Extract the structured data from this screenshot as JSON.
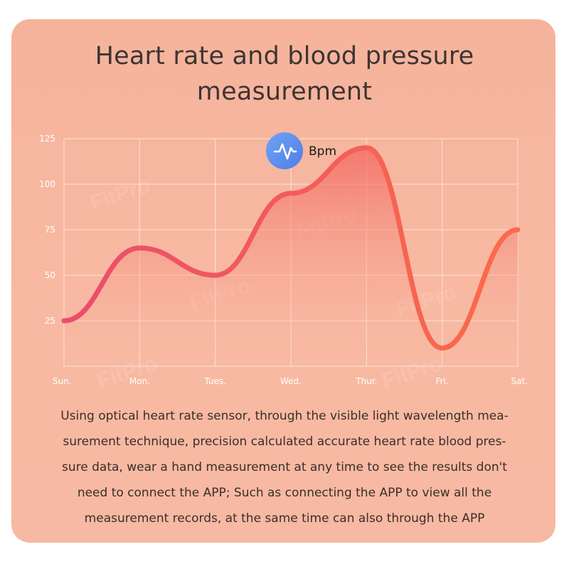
{
  "title_lines": [
    "Heart rate and blood pressure",
    "measurement"
  ],
  "legend": {
    "label": "Bpm",
    "icon": "heartbeat-pulse-icon",
    "badge_color": "#4f7de8"
  },
  "watermark": "FitPro",
  "colors": {
    "line_start": "#ea4d6c",
    "line_end": "#fb6b4a",
    "background": "#f7b6a0"
  },
  "chart_data": {
    "type": "area",
    "categories": [
      "Sun.",
      "Mon.",
      "Tues.",
      "Wed.",
      "Thur.",
      "Fri.",
      "Sat."
    ],
    "values": [
      25,
      65,
      50,
      95,
      120,
      10,
      75
    ],
    "series": [
      {
        "name": "Bpm",
        "values": [
          25,
          65,
          50,
          95,
          120,
          10,
          75
        ]
      }
    ],
    "y_ticks": [
      125,
      100,
      75,
      50,
      25
    ],
    "ylim": [
      0,
      125
    ],
    "grid": true,
    "title": "",
    "xlabel": "",
    "ylabel": ""
  },
  "description_lines": [
    "Using optical heart rate sensor, through the visible light wavelength mea-",
    "surement technique, precision calculated accurate heart rate blood pres-",
    "sure data, wear a hand measurement at any time to see the results don't",
    "need to connect the APP; Such as connecting the APP to view all the",
    "measurement records, at the same time can also through the APP"
  ]
}
